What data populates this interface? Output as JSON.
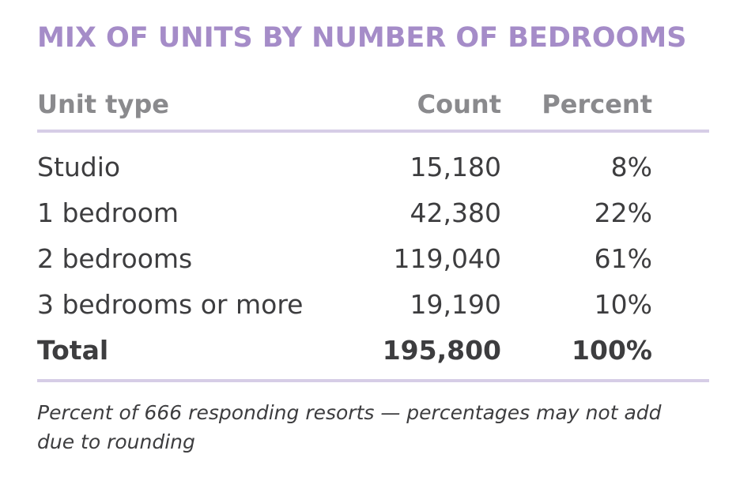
{
  "title": "MIX OF UNITS BY NUMBER OF BEDROOMS",
  "table": {
    "headers": {
      "unit_type": "Unit type",
      "count": "Count",
      "percent": "Percent"
    },
    "rows": [
      {
        "unit_type": "Studio",
        "count": "15,180",
        "percent": "8%"
      },
      {
        "unit_type": "1 bedroom",
        "count": "42,380",
        "percent": "22%"
      },
      {
        "unit_type": "2 bedrooms",
        "count": "119,040",
        "percent": "61%"
      },
      {
        "unit_type": "3 bedrooms or more",
        "count": "19,190",
        "percent": "10%"
      }
    ],
    "total": {
      "unit_type": "Total",
      "count": "195,800",
      "percent": "100%"
    }
  },
  "note": "Percent of 666 responding resorts — percentages may not add due to rounding",
  "colors": {
    "title": "#a58cc8",
    "rule": "#d6cde6",
    "header_text": "#8a8a8d",
    "body_text": "#3d3d3f"
  }
}
